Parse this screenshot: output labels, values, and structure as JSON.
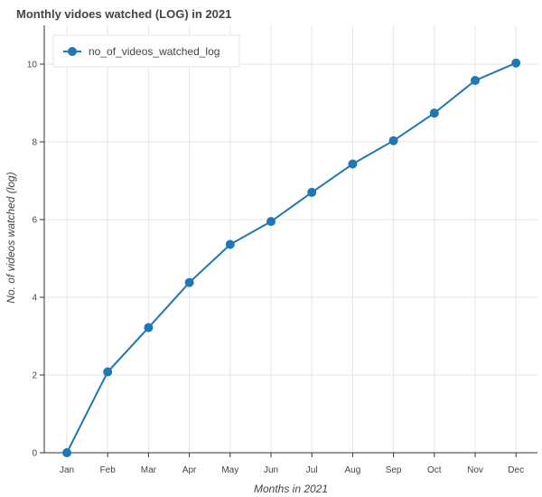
{
  "chart_data": {
    "type": "line",
    "title": "Monthly vidoes watched (LOG) in 2021",
    "xlabel": "Months in 2021",
    "ylabel": "No. of videos watched (log)",
    "categories": [
      "Jan",
      "Feb",
      "Mar",
      "Apr",
      "May",
      "Jun",
      "Jul",
      "Aug",
      "Sep",
      "Oct",
      "Nov",
      "Dec"
    ],
    "series": [
      {
        "name": "no_of_videos_watched_log",
        "values": [
          0,
          2.08,
          3.22,
          4.38,
          5.36,
          5.95,
          6.7,
          7.43,
          8.03,
          8.74,
          9.58,
          10.03
        ],
        "color": "#1f77b4",
        "marker": "circle"
      }
    ],
    "ylim": [
      0,
      11
    ],
    "yticks": [
      0,
      2,
      4,
      6,
      8,
      10
    ],
    "grid": true,
    "legend_position": "top-left"
  }
}
